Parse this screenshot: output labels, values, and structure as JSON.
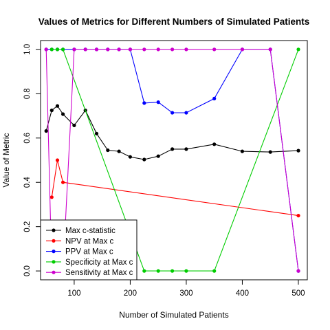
{
  "chart_data": {
    "type": "line",
    "title": "Values of Metrics for Different Numbers of Simulated Patients",
    "xlabel": "Number of Simulated Patients",
    "ylabel": "Value of Metric",
    "xlim": [
      40,
      516
    ],
    "ylim": [
      -0.04,
      1.04
    ],
    "xticks": [
      100,
      200,
      300,
      400,
      500
    ],
    "yticks": [
      0.0,
      0.2,
      0.4,
      0.6,
      0.8,
      1.0
    ],
    "ytick_labels": [
      "0.0",
      "0.2",
      "0.4",
      "0.6",
      "0.8",
      "1.0"
    ],
    "legend_position": "bottom-left",
    "series": [
      {
        "name": "Max c-statistic",
        "color": "#000000",
        "x": [
          50,
          60,
          70,
          80,
          100,
          120,
          140,
          160,
          180,
          200,
          225,
          250,
          275,
          300,
          350,
          400,
          450,
          500
        ],
        "y": [
          0.632,
          0.725,
          0.745,
          0.708,
          0.657,
          0.725,
          0.62,
          0.545,
          0.54,
          0.515,
          0.503,
          0.518,
          0.55,
          0.55,
          0.572,
          0.54,
          0.537,
          0.543
        ]
      },
      {
        "name": "NPV at Max c",
        "color": "#ff0000",
        "x": [
          60,
          70,
          80,
          500
        ],
        "y": [
          0.333,
          0.5,
          0.4,
          0.25
        ]
      },
      {
        "name": "PPV at Max c",
        "color": "#0000ff",
        "x": [
          50,
          60,
          70,
          80,
          100,
          120,
          140,
          160,
          180,
          200,
          225,
          250,
          275,
          300,
          350,
          400,
          450,
          500
        ],
        "y": [
          1.0,
          1.0,
          1.0,
          1.0,
          1.0,
          1.0,
          1.0,
          1.0,
          1.0,
          1.0,
          0.758,
          0.762,
          0.714,
          0.714,
          0.778,
          1.0,
          1.0,
          0.0
        ]
      },
      {
        "name": "Specificity at Max c",
        "color": "#00cd00",
        "x": [
          60,
          70,
          80,
          225,
          250,
          275,
          300,
          350,
          500
        ],
        "y": [
          1.0,
          1.0,
          1.0,
          0.0,
          0.0,
          0.0,
          0.0,
          0.0,
          1.0
        ]
      },
      {
        "name": "Sensitivity at Max c",
        "color": "#cd00cd",
        "x": [
          50,
          60,
          70,
          80,
          100,
          120,
          140,
          160,
          180,
          200,
          225,
          250,
          275,
          300,
          350,
          400,
          450,
          500
        ],
        "y": [
          1.0,
          0.0,
          0.0,
          0.0,
          1.0,
          1.0,
          1.0,
          1.0,
          1.0,
          1.0,
          1.0,
          1.0,
          1.0,
          1.0,
          1.0,
          1.0,
          1.0,
          0.0
        ]
      }
    ]
  }
}
